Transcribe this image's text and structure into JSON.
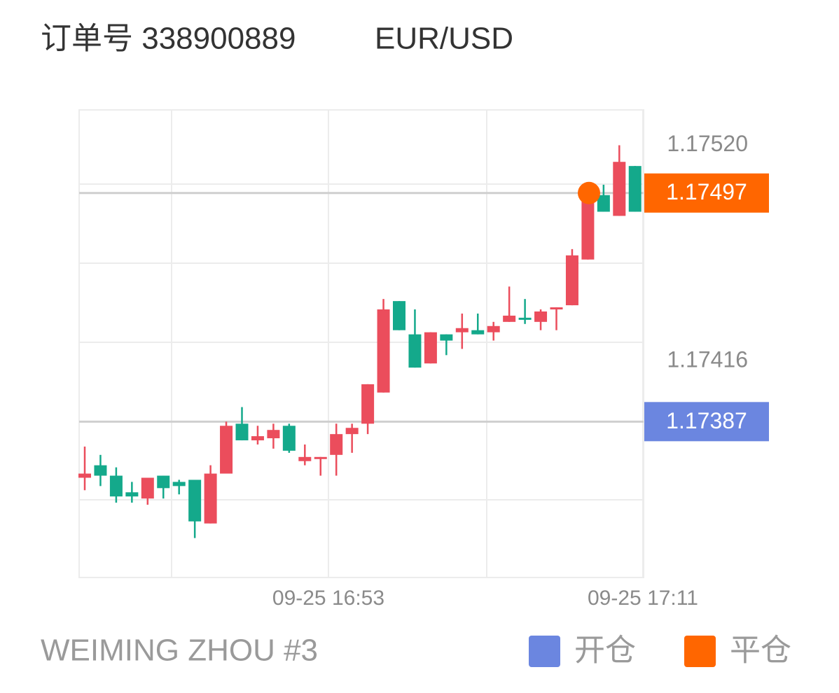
{
  "chart_data": {
    "type": "candlestick",
    "title": "订单号 338900889",
    "subtitle": "EUR/USD",
    "footer": "WEIMING ZHOU #3",
    "up_color": "#eb4d5c",
    "down_color": "#14a98b",
    "ylim": [
      1.17312,
      1.17537
    ],
    "yticks": [
      {
        "value": 1.1752,
        "label": "1.17520"
      },
      1.17416
    ],
    "xticks": [
      {
        "value": 15.5,
        "label": "09-25 16:53"
      },
      {
        "value": 35.5,
        "label": "09-25 17:11"
      }
    ],
    "open": [
      1.1736,
      1.17366,
      1.17361,
      1.17353,
      1.1735,
      1.17361,
      1.17358,
      1.17359,
      1.17338,
      1.17362,
      1.17386,
      1.17378,
      1.17379,
      1.17385,
      1.17368,
      1.17369,
      1.17371,
      1.17381,
      1.17386,
      1.17401,
      1.17445,
      1.17429,
      1.17415,
      1.17429,
      1.1743,
      1.17431,
      1.1743,
      1.17435,
      1.17437,
      1.17435,
      1.17441,
      1.17443,
      1.17465,
      1.17496,
      1.17486,
      1.1751
    ],
    "high": [
      1.17375,
      1.17371,
      1.17365,
      1.17358,
      1.1736,
      1.17361,
      1.17359,
      1.17359,
      1.17366,
      1.17387,
      1.17394,
      1.17385,
      1.17386,
      1.17386,
      1.17376,
      1.1737,
      1.17386,
      1.17386,
      1.17405,
      1.17446,
      1.17445,
      1.17441,
      1.1743,
      1.17429,
      1.17439,
      1.17439,
      1.17435,
      1.17452,
      1.17446,
      1.17441,
      1.17442,
      1.1747,
      1.17497,
      1.17501,
      1.1752,
      1.1751
    ],
    "low": [
      1.17354,
      1.17356,
      1.17348,
      1.17348,
      1.17347,
      1.1735,
      1.17352,
      1.17331,
      1.17338,
      1.17362,
      1.17378,
      1.17376,
      1.17374,
      1.17372,
      1.17366,
      1.17361,
      1.17361,
      1.17372,
      1.17381,
      1.17401,
      1.17431,
      1.17413,
      1.17415,
      1.17419,
      1.17422,
      1.17429,
      1.17426,
      1.17435,
      1.17434,
      1.17431,
      1.17431,
      1.17443,
      1.17465,
      1.17488,
      1.17486,
      1.17488
    ],
    "close": [
      1.17362,
      1.17361,
      1.17351,
      1.17351,
      1.1736,
      1.17355,
      1.17356,
      1.17339,
      1.17362,
      1.17385,
      1.17378,
      1.1738,
      1.17383,
      1.17373,
      1.1737,
      1.1737,
      1.17381,
      1.17384,
      1.17405,
      1.17441,
      1.17431,
      1.17413,
      1.1743,
      1.17426,
      1.17432,
      1.17429,
      1.17433,
      1.17438,
      1.17436,
      1.1744,
      1.17442,
      1.17467,
      1.17494,
      1.17488,
      1.17512,
      1.17488
    ],
    "markers": [
      {
        "name": "开仓",
        "color": "#6b86e0",
        "value": 1.17387
      },
      {
        "name": "平仓",
        "color": "#ff6600",
        "value": 1.17497
      }
    ]
  }
}
